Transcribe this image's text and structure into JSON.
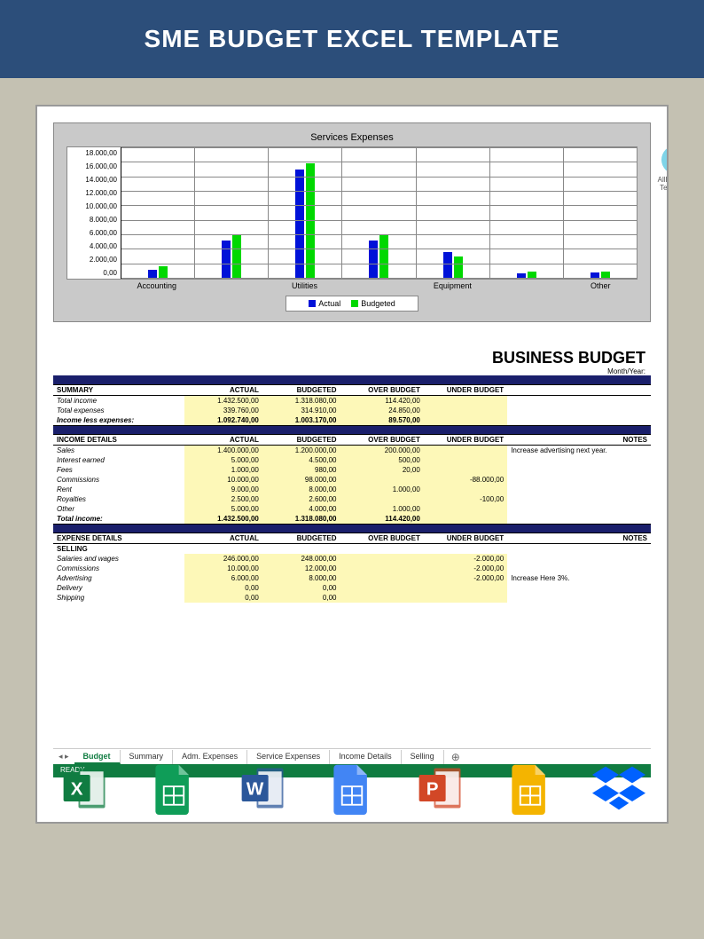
{
  "header": {
    "title": "SME BUDGET EXCEL TEMPLATE"
  },
  "watermark": {
    "line1": "AllBusiness",
    "line2": "Templates"
  },
  "chart": {
    "title": "Services Expenses",
    "type": "bar",
    "ylim": [
      0,
      18000
    ],
    "ytick_step": 2000,
    "yticks": [
      "18.000,00",
      "16.000,00",
      "14.000,00",
      "12.000,00",
      "10.000,00",
      "8.000,00",
      "6.000,00",
      "4.000,00",
      "2.000,00",
      "0,00"
    ],
    "categories": [
      "Accounting",
      "",
      "Utilities",
      "",
      "Equipment",
      "",
      "Other"
    ],
    "series": [
      {
        "name": "Actual",
        "color": "#0012d8",
        "values": [
          1100,
          5200,
          15000,
          5200,
          3500,
          600,
          700
        ]
      },
      {
        "name": "Budgeted",
        "color": "#00d800",
        "values": [
          1600,
          6000,
          15800,
          6000,
          3000,
          800,
          900
        ]
      }
    ],
    "background_color": "#c9c9c9",
    "plot_bg": "#ffffff",
    "grid_color": "#888888",
    "legend": [
      "Actual",
      "Budgeted"
    ]
  },
  "budget": {
    "title": "BUSINESS BUDGET",
    "subtitle": "Month/Year:",
    "columns": [
      "ACTUAL",
      "BUDGETED",
      "OVER BUDGET",
      "UNDER BUDGET"
    ],
    "notes_header": "NOTES",
    "summary": {
      "heading": "SUMMARY",
      "rows": [
        {
          "label": "Total income",
          "actual": "1.432.500,00",
          "budgeted": "1.318.080,00",
          "over": "114.420,00",
          "under": "",
          "hl": true
        },
        {
          "label": "Total expenses",
          "actual": "339.760,00",
          "budgeted": "314.910,00",
          "over": "24.850,00",
          "under": "",
          "hl": true
        },
        {
          "label": "Income less expenses:",
          "actual": "1.092.740,00",
          "budgeted": "1.003.170,00",
          "over": "89.570,00",
          "under": "",
          "hl": true,
          "bold": true
        }
      ]
    },
    "income": {
      "heading": "INCOME DETAILS",
      "rows": [
        {
          "label": "Sales",
          "actual": "1.400.000,00",
          "budgeted": "1.200.000,00",
          "over": "200.000,00",
          "under": "",
          "note": "Increase advertising next year.",
          "hl": true
        },
        {
          "label": "Interest earned",
          "actual": "5.000,00",
          "budgeted": "4.500,00",
          "over": "500,00",
          "under": "",
          "hl": true
        },
        {
          "label": "Fees",
          "actual": "1.000,00",
          "budgeted": "980,00",
          "over": "20,00",
          "under": "",
          "hl": true
        },
        {
          "label": "Commissions",
          "actual": "10.000,00",
          "budgeted": "98.000,00",
          "over": "",
          "under": "-88.000,00",
          "hl": true
        },
        {
          "label": "Rent",
          "actual": "9.000,00",
          "budgeted": "8.000,00",
          "over": "1.000,00",
          "under": "",
          "hl": true
        },
        {
          "label": "Royalties",
          "actual": "2.500,00",
          "budgeted": "2.600,00",
          "over": "",
          "under": "-100,00",
          "hl": true
        },
        {
          "label": "Other",
          "actual": "5.000,00",
          "budgeted": "4.000,00",
          "over": "1.000,00",
          "under": "",
          "hl": true
        },
        {
          "label": "Total income:",
          "actual": "1.432.500,00",
          "budgeted": "1.318.080,00",
          "over": "114.420,00",
          "under": "",
          "hl": true,
          "bold": true
        }
      ]
    },
    "expense": {
      "heading": "EXPENSE DETAILS",
      "subheading": "SELLING",
      "rows": [
        {
          "label": "Salaries and wages",
          "actual": "246.000,00",
          "budgeted": "248.000,00",
          "over": "",
          "under": "-2.000,00",
          "hl": true
        },
        {
          "label": "Commissions",
          "actual": "10.000,00",
          "budgeted": "12.000,00",
          "over": "",
          "under": "-2.000,00",
          "hl": true
        },
        {
          "label": "Advertising",
          "actual": "6.000,00",
          "budgeted": "8.000,00",
          "over": "",
          "under": "-2.000,00",
          "note": "Increase Here 3%.",
          "hl": true
        },
        {
          "label": "Delivery",
          "actual": "0,00",
          "budgeted": "0,00",
          "over": "",
          "under": "",
          "hl": true
        },
        {
          "label": "Shipping",
          "actual": "0,00",
          "budgeted": "0,00",
          "over": "",
          "under": "",
          "hl": true
        }
      ]
    }
  },
  "tabs": {
    "items": [
      "Budget",
      "Summary",
      "Adm. Expenses",
      "Service Expenses",
      "Income Details",
      "Selling"
    ],
    "active": 0,
    "status": "READY"
  },
  "file_icons": [
    {
      "name": "excel-icon",
      "color": "#107c41",
      "letter": "X",
      "type": "book"
    },
    {
      "name": "sheets-icon",
      "color": "#0f9d58",
      "letter": "",
      "type": "sheet"
    },
    {
      "name": "word-icon",
      "color": "#2b579a",
      "letter": "W",
      "type": "book"
    },
    {
      "name": "gdoc-icon",
      "color": "#4285f4",
      "letter": "",
      "type": "sheet"
    },
    {
      "name": "powerpoint-icon",
      "color": "#d24726",
      "letter": "P",
      "type": "book"
    },
    {
      "name": "gslides-icon",
      "color": "#f4b400",
      "letter": "",
      "type": "sheet"
    },
    {
      "name": "dropbox-icon",
      "color": "#0061ff",
      "letter": "",
      "type": "dropbox"
    }
  ]
}
